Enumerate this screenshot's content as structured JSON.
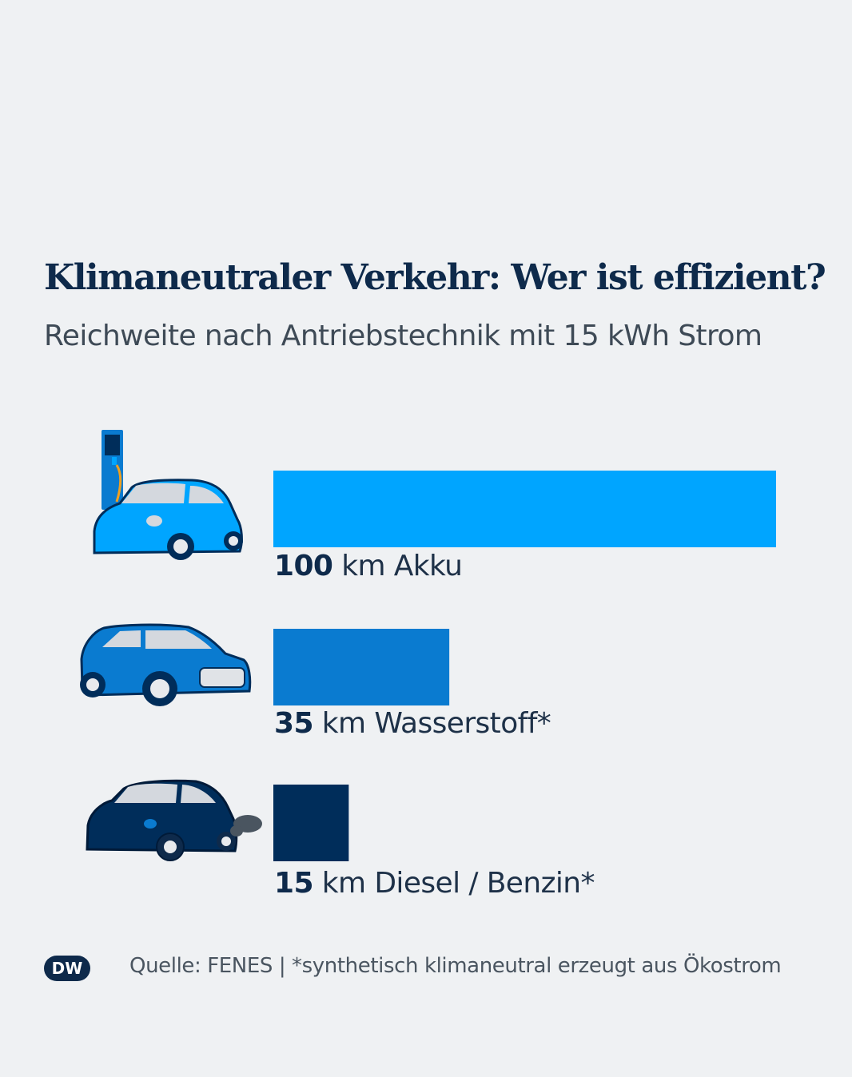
{
  "title": "Klimaneutraler Verkehr: Wer ist effizient?",
  "subtitle": "Reichweite nach Antriebstechnik mit 15 kWh Strom",
  "chart_data": {
    "type": "bar",
    "orientation": "horizontal",
    "categories": [
      "Akku",
      "Wasserstoff*",
      "Diesel / Benzin*"
    ],
    "values": [
      100,
      35,
      15
    ],
    "unit": "km",
    "value_labels": [
      "100",
      "35",
      "15"
    ],
    "bar_colors": [
      "#00a5ff",
      "#0a7bd0",
      "#002d5a"
    ],
    "xlim": [
      0,
      100
    ]
  },
  "bars": [
    {
      "value": "100",
      "unit": "km",
      "name": "Akku",
      "icon": "electric-car-charging-icon"
    },
    {
      "value": "35",
      "unit": "km",
      "name": "Wasserstoff*",
      "icon": "hydrogen-car-icon"
    },
    {
      "value": "15",
      "unit": "km",
      "name": "Diesel / Benzin*",
      "icon": "combustion-car-exhaust-icon"
    }
  ],
  "footer": {
    "logo": "DW",
    "source": "Quelle: FENES | *synthetisch klimaneutral erzeugt aus Ökostrom"
  },
  "colors": {
    "background": "#eff1f3",
    "title": "#0e2a4b",
    "subtitle": "#3e4a56"
  }
}
